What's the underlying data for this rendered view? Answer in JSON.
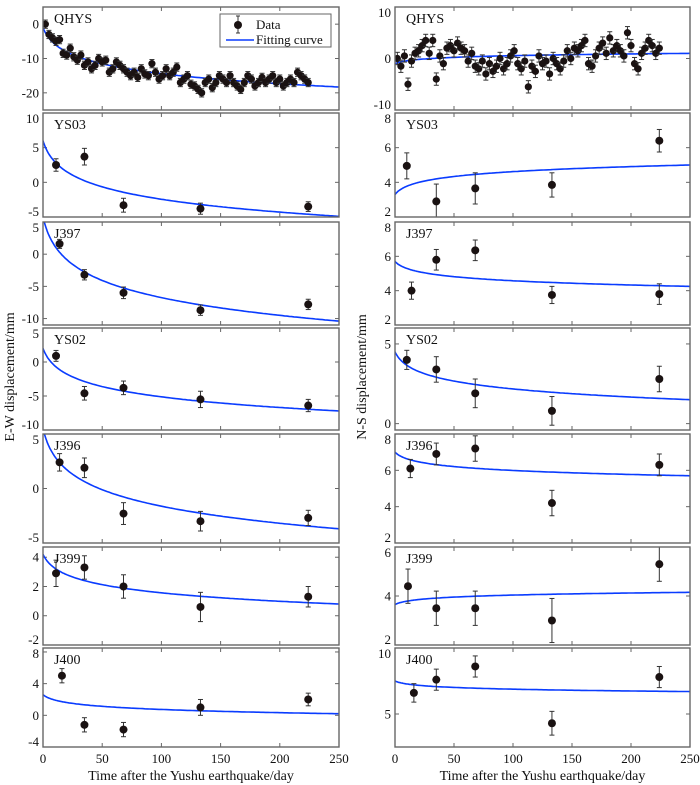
{
  "chart_data": {
    "type": "scatter",
    "xlabel": "Time after the Yushu earthquake/day",
    "xlim": [
      0,
      250
    ],
    "xticks": [
      "0",
      "50",
      "100",
      "150",
      "200",
      "250"
    ],
    "legend": {
      "placement": "top-right",
      "entries": [
        "Data",
        "Fitting curve"
      ]
    },
    "colors": {
      "data": "#1a1212",
      "errorbar": "#333333",
      "fit": "#0a3cff",
      "axis": "#666666"
    },
    "columns": [
      {
        "ylabel": "E-W displacement/mm",
        "panels": [
          {
            "station": "QHYS",
            "ylim": [
              -25,
              5
            ],
            "yticks": [
              "0",
              "-10",
              "-20"
            ],
            "ytick_values": [
              0,
              -10,
              -20
            ],
            "x": [
              2,
              5,
              8,
              11,
              14,
              17,
              20,
              23,
              26,
              29,
              32,
              35,
              38,
              41,
              44,
              47,
              50,
              53,
              56,
              59,
              62,
              65,
              68,
              71,
              74,
              77,
              80,
              83,
              86,
              89,
              92,
              95,
              98,
              101,
              104,
              107,
              110,
              113,
              116,
              119,
              122,
              125,
              128,
              131,
              134,
              137,
              140,
              143,
              146,
              149,
              152,
              155,
              158,
              161,
              164,
              167,
              170,
              173,
              176,
              179,
              182,
              185,
              188,
              191,
              194,
              197,
              200,
              203,
              206,
              209,
              212,
              215,
              218,
              221,
              224
            ],
            "y": [
              0,
              -3,
              -4,
              -5,
              -4.5,
              -8.5,
              -9,
              -7,
              -9.5,
              -10.5,
              -9,
              -12,
              -11,
              -13,
              -12,
              -10,
              -11,
              -10.5,
              -14,
              -13,
              -11,
              -12,
              -13,
              -14,
              -15,
              -14,
              -15.5,
              -13,
              -14.5,
              -15,
              -11.5,
              -14,
              -16,
              -15,
              -13,
              -15,
              -14,
              -12.5,
              -17,
              -16,
              -15,
              -17.5,
              -18,
              -19,
              -20,
              -17,
              -16,
              -18.5,
              -17,
              -15,
              -16,
              -17,
              -15,
              -17,
              -18,
              -19,
              -17,
              -15,
              -16,
              -18,
              -17,
              -15.5,
              -17,
              -16,
              -15,
              -17,
              -16,
              -18,
              -17,
              -16,
              -17,
              -14,
              -15,
              -16,
              -17
            ],
            "err": 1.2,
            "fit_curve": {
              "x": [
                0,
                250
              ],
              "y": [
                -1,
                -18.3
              ]
            }
          },
          {
            "station": "YS03",
            "ylim": [
              -5,
              10
            ],
            "yticks": [
              "10",
              "5",
              "0",
              "-5"
            ],
            "ytick_values": [
              10,
              5,
              0,
              -5
            ],
            "x": [
              11,
              35,
              68,
              133,
              224
            ],
            "y": [
              2.5,
              3.7,
              -3.3,
              -3.8,
              -3.5
            ],
            "err": [
              0.9,
              1.2,
              1.0,
              0.8,
              0.7
            ],
            "fit_curve": {
              "x": [
                0,
                250
              ],
              "y": [
                6,
                -4.9
              ]
            }
          },
          {
            "station": "J397",
            "ylim": [
              -11,
              5
            ],
            "yticks": [
              "5",
              "0",
              "-5",
              "-10"
            ],
            "ytick_values": [
              5,
              0,
              -5,
              -10
            ],
            "x": [
              14,
              35,
              68,
              133,
              224
            ],
            "y": [
              1.6,
              -3.2,
              -6.0,
              -8.7,
              -7.8
            ],
            "err": [
              0.7,
              0.8,
              0.9,
              0.8,
              0.8
            ],
            "fit_curve": {
              "x": [
                0,
                250
              ],
              "y": [
                5.8,
                -10.4
              ]
            }
          },
          {
            "station": "YS02",
            "ylim": [
              -10,
              5
            ],
            "yticks": [
              "5",
              "0",
              "-5",
              "-10"
            ],
            "ytick_values": [
              5,
              0,
              -5,
              -10
            ],
            "x": [
              11,
              35,
              68,
              133,
              224
            ],
            "y": [
              0.9,
              -4.6,
              -3.8,
              -5.5,
              -6.4
            ],
            "err": [
              0.8,
              1.0,
              1.0,
              1.2,
              0.9
            ],
            "fit_curve": {
              "x": [
                0,
                250
              ],
              "y": [
                2,
                -7.2
              ]
            }
          },
          {
            "station": "J396",
            "ylim": [
              -5,
              5
            ],
            "yticks": [
              "5",
              "0",
              "-5"
            ],
            "ytick_values": [
              5,
              0,
              -5
            ],
            "x": [
              14,
              35,
              68,
              133,
              224
            ],
            "y": [
              2.4,
              1.9,
              -2.3,
              -3.0,
              -2.7
            ],
            "err": [
              0.8,
              0.9,
              1.0,
              0.9,
              0.7
            ],
            "fit_curve": {
              "x": [
                0,
                250
              ],
              "y": [
                5.5,
                -3.7
              ]
            }
          },
          {
            "station": "J399",
            "ylim": [
              -2,
              4.7
            ],
            "yticks": [
              "4",
              "2",
              "0",
              "-2"
            ],
            "ytick_values": [
              4,
              2,
              0,
              -2
            ],
            "x": [
              11,
              35,
              68,
              133,
              224
            ],
            "y": [
              2.9,
              3.3,
              2.0,
              0.6,
              1.3
            ],
            "err": [
              0.9,
              0.8,
              0.8,
              1.0,
              0.7
            ],
            "fit_curve": {
              "x": [
                0,
                250
              ],
              "y": [
                4.2,
                0.8
              ]
            }
          },
          {
            "station": "J400",
            "ylim": [
              -4,
              8.5
            ],
            "yticks": [
              "8",
              "4",
              "0",
              "-4"
            ],
            "ytick_values": [
              8,
              4,
              0,
              -4
            ],
            "x": [
              16,
              35,
              68,
              133,
              224
            ],
            "y": [
              5.0,
              -1.2,
              -1.8,
              1.0,
              2.0
            ],
            "err": [
              0.9,
              0.9,
              0.9,
              1.0,
              0.8
            ],
            "fit_curve": {
              "x": [
                0,
                250
              ],
              "y": [
                2.6,
                0.2
              ]
            }
          }
        ]
      },
      {
        "ylabel": "N-S displacement/mm",
        "panels": [
          {
            "station": "QHYS",
            "ylim": [
              -10,
              10
            ],
            "yticks": [
              "10",
              "0",
              "-10"
            ],
            "ytick_values": [
              10,
              0,
              -10
            ],
            "x": [
              2,
              5,
              8,
              11,
              14,
              17,
              20,
              23,
              26,
              29,
              32,
              35,
              38,
              41,
              44,
              47,
              50,
              53,
              56,
              59,
              62,
              65,
              68,
              71,
              74,
              77,
              80,
              83,
              86,
              89,
              92,
              95,
              98,
              101,
              104,
              107,
              110,
              113,
              116,
              119,
              122,
              125,
              128,
              131,
              134,
              137,
              140,
              143,
              146,
              149,
              152,
              155,
              158,
              161,
              164,
              167,
              170,
              173,
              176,
              179,
              182,
              185,
              188,
              191,
              194,
              197,
              200,
              203,
              206,
              209,
              212,
              215,
              218,
              221,
              224
            ],
            "y": [
              0,
              -1.5,
              0.5,
              -5,
              -0.5,
              1,
              1.5,
              2.5,
              3.5,
              1,
              3.5,
              -4,
              0.5,
              -1,
              2,
              2.5,
              1.5,
              3,
              2,
              1.5,
              -0.5,
              1,
              -1.5,
              -2,
              -0.5,
              -3,
              -1,
              -2.5,
              -1.5,
              0,
              -2,
              -1,
              0.5,
              1.5,
              -1,
              -2,
              -0.5,
              -5.5,
              -1.5,
              -2.5,
              0.5,
              -1,
              -0.5,
              -3,
              0,
              -1,
              -2,
              -0.5,
              1.5,
              0,
              2,
              1.5,
              2.5,
              3.5,
              -1,
              -1.5,
              0.5,
              2,
              3,
              1,
              4,
              1.5,
              2.5,
              1.5,
              0.5,
              5,
              2.5,
              -1,
              -2,
              1,
              2,
              3.5,
              2.5,
              1,
              2
            ],
            "err": 1.2,
            "fit_curve": {
              "x": [
                0,
                250
              ],
              "y": [
                -1,
                1
              ]
            }
          },
          {
            "station": "YS03",
            "ylim": [
              2,
              8
            ],
            "yticks": [
              "8",
              "6",
              "4",
              "2"
            ],
            "ytick_values": [
              8,
              6,
              4,
              2
            ],
            "x": [
              10,
              35,
              68,
              133,
              224
            ],
            "y": [
              4.95,
              2.9,
              3.65,
              3.85,
              6.4
            ],
            "err": [
              0.75,
              1.0,
              0.9,
              0.7,
              0.65
            ],
            "fit_curve": {
              "x": [
                0,
                250
              ],
              "y": [
                3.3,
                5.0
              ]
            }
          },
          {
            "station": "J397",
            "ylim": [
              2,
              8
            ],
            "yticks": [
              "8",
              "6",
              "4",
              "2"
            ],
            "ytick_values": [
              8,
              6,
              4,
              2
            ],
            "x": [
              14,
              35,
              68,
              133,
              224
            ],
            "y": [
              4.0,
              5.8,
              6.35,
              3.75,
              3.8
            ],
            "err": [
              0.5,
              0.6,
              0.6,
              0.5,
              0.6
            ],
            "fit_curve": {
              "x": [
                0,
                250
              ],
              "y": [
                5.7,
                4.25
              ]
            }
          },
          {
            "station": "YS02",
            "ylim": [
              -0.4,
              6
            ],
            "yticks": [
              "5",
              "0"
            ],
            "ytick_values": [
              5,
              0
            ],
            "x": [
              10,
              35,
              68,
              133,
              224
            ],
            "y": [
              4.0,
              3.4,
              1.9,
              0.8,
              2.8
            ],
            "err": [
              0.6,
              0.8,
              0.9,
              0.9,
              0.8
            ],
            "fit_curve": {
              "x": [
                0,
                250
              ],
              "y": [
                4.5,
                1.5
              ]
            }
          },
          {
            "station": "J396",
            "ylim": [
              2,
              8
            ],
            "yticks": [
              "8",
              "6",
              "4",
              "2"
            ],
            "ytick_values": [
              8,
              6,
              4,
              2
            ],
            "x": [
              13,
              35,
              68,
              133,
              224
            ],
            "y": [
              6.1,
              6.9,
              7.2,
              4.2,
              6.3
            ],
            "err": [
              0.5,
              0.6,
              0.7,
              0.7,
              0.6
            ],
            "fit_curve": {
              "x": [
                0,
                250
              ],
              "y": [
                7.0,
                5.7
              ]
            }
          },
          {
            "station": "J399",
            "ylim": [
              2,
              6
            ],
            "yticks": [
              "6",
              "4",
              "2"
            ],
            "ytick_values": [
              6,
              4,
              2
            ],
            "x": [
              11,
              35,
              68,
              133,
              224
            ],
            "y": [
              4.4,
              3.5,
              3.5,
              3.0,
              5.3
            ],
            "err": [
              0.7,
              0.7,
              0.7,
              0.9,
              0.7
            ],
            "fit_curve": {
              "x": [
                0,
                250
              ],
              "y": [
                3.65,
                4.15
              ]
            }
          },
          {
            "station": "J400",
            "ylim": [
              2.5,
              10
            ],
            "yticks": [
              "10",
              "5"
            ],
            "ytick_values": [
              10,
              5
            ],
            "x": [
              16,
              35,
              68,
              133,
              224
            ],
            "y": [
              6.6,
              7.6,
              8.6,
              4.3,
              7.8
            ],
            "err": [
              0.7,
              0.8,
              0.8,
              0.9,
              0.8
            ],
            "fit_curve": {
              "x": [
                0,
                250
              ],
              "y": [
                7.5,
                6.7
              ]
            }
          }
        ]
      }
    ]
  }
}
